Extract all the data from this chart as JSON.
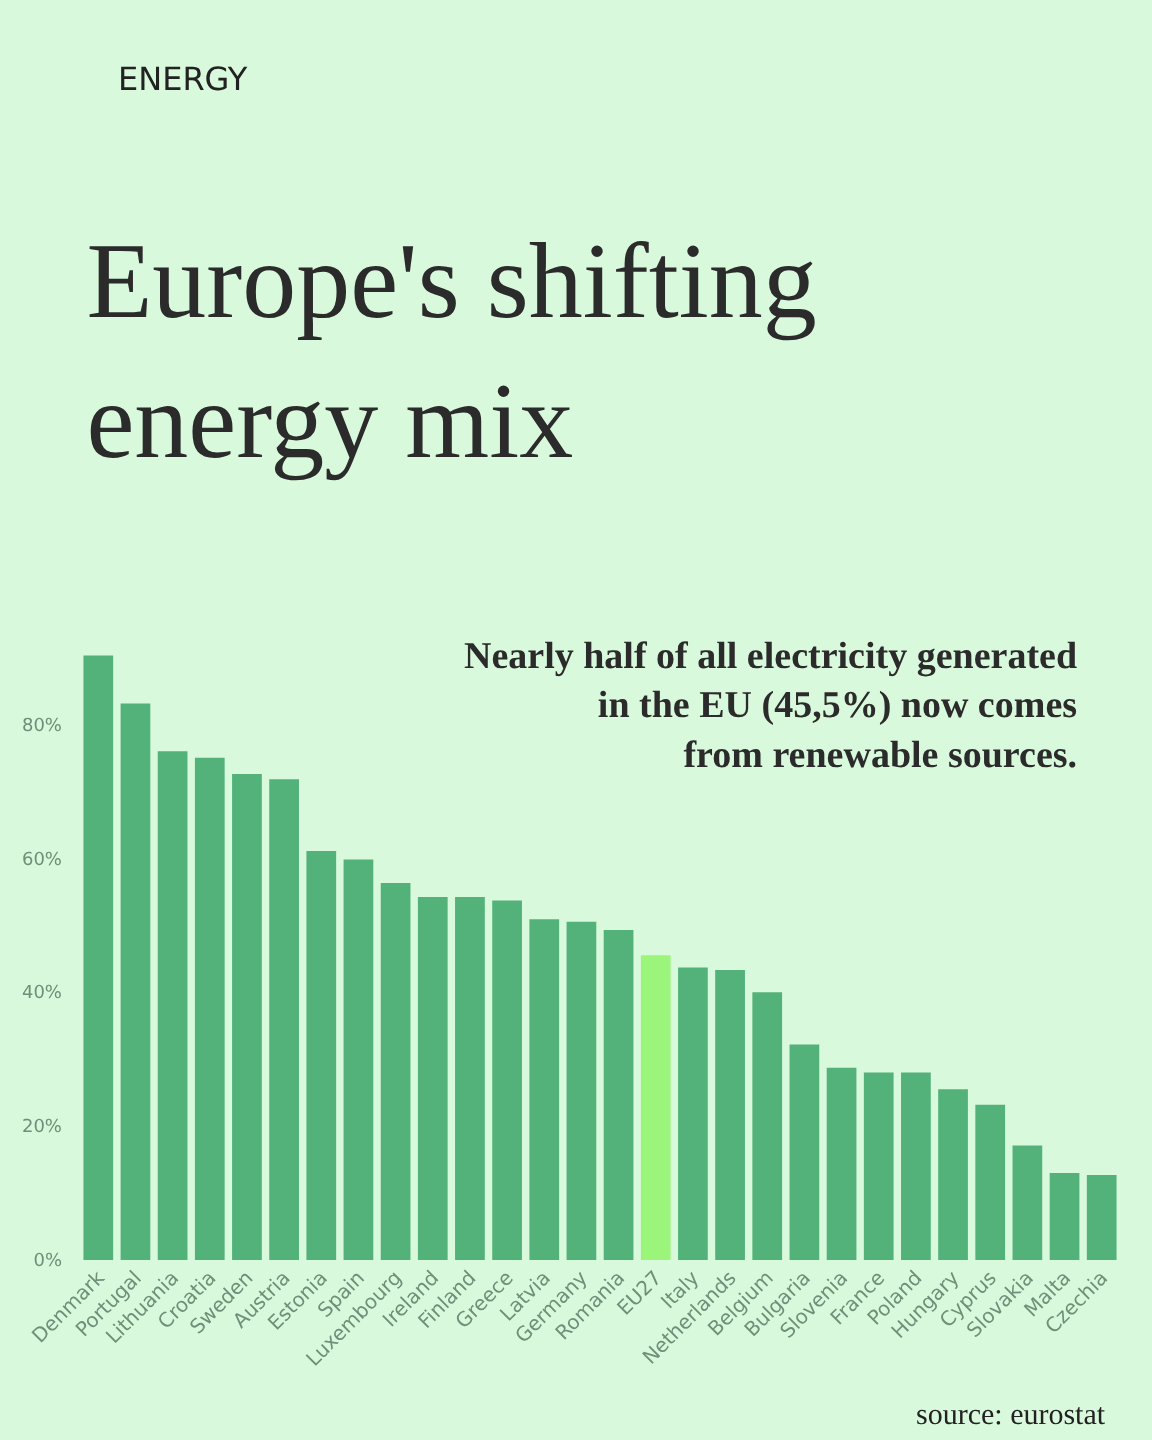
{
  "chart_data": {
    "type": "bar",
    "title": "Europe's shifting\nenergy mix",
    "subtitle": "Nearly half of all electricity generated\nin the EU (45,5%) now comes\nfrom renewable sources.",
    "annotations": [
      "ENERGY",
      "source: eurostat"
    ],
    "categories": [
      "Denmark",
      "Portugal",
      "Lithuania",
      "Croatia",
      "Sweden",
      "Austria",
      "Estonia",
      "Spain",
      "Luxembourg",
      "Ireland",
      "Finland",
      "Greece",
      "Latvia",
      "Germany",
      "Romania",
      "EU27",
      "Italy",
      "Netherlands",
      "Belgium",
      "Bulgaria",
      "Slovenia",
      "France",
      "Poland",
      "Hungary",
      "Cyprus",
      "Slovakia",
      "Malta",
      "Czechia"
    ],
    "values": [
      90.3,
      83.1,
      76.0,
      75.0,
      72.6,
      71.8,
      61.1,
      59.8,
      56.3,
      54.2,
      54.2,
      53.7,
      50.9,
      50.5,
      49.3,
      45.5,
      43.7,
      43.3,
      40.0,
      32.2,
      28.7,
      28.0,
      28.0,
      25.5,
      23.2,
      17.1,
      13.0,
      12.7
    ],
    "colors": [
      "#52b27a",
      "#52b27a",
      "#52b27a",
      "#52b27a",
      "#52b27a",
      "#52b27a",
      "#52b27a",
      "#52b27a",
      "#52b27a",
      "#52b27a",
      "#52b27a",
      "#52b27a",
      "#52b27a",
      "#52b27a",
      "#52b27a",
      "#9af57a",
      "#52b27a",
      "#52b27a",
      "#52b27a",
      "#52b27a",
      "#52b27a",
      "#52b27a",
      "#52b27a",
      "#52b27a",
      "#52b27a",
      "#52b27a",
      "#52b27a",
      "#52b27a"
    ],
    "ylim": [
      0,
      92
    ],
    "yticks": [
      {
        "value": 0,
        "label": "0%"
      },
      {
        "value": 20,
        "label": "20%"
      },
      {
        "value": 40,
        "label": "40%"
      },
      {
        "value": 60,
        "label": "60%"
      },
      {
        "value": 80,
        "label": "80%"
      }
    ],
    "grid": false
  }
}
